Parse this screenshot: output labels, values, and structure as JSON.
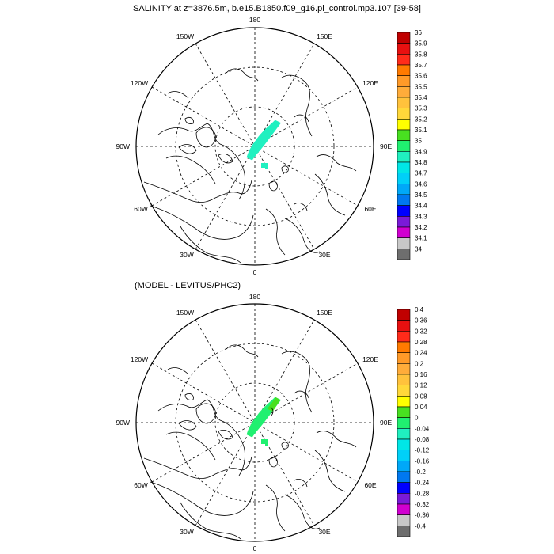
{
  "panel1": {
    "title": "SALINITY at z=3876.5m, b.e15.B1850.f09_g16.pi_control.mp3.107 [39-58]",
    "lon_labels": {
      "top": "180",
      "bottom": "0",
      "left": "90W",
      "right": "90E",
      "ul": "150W",
      "ur": "150E",
      "ull": "120W",
      "urr": "120E",
      "ll": "60W",
      "lr": "60E",
      "lll": "30W",
      "lrr": "30E"
    },
    "colorbar": {
      "labels": [
        "36",
        "35.9",
        "35.8",
        "35.7",
        "35.6",
        "35.5",
        "35.4",
        "35.3",
        "35.2",
        "35.1",
        "35",
        "34.9",
        "34.8",
        "34.7",
        "34.6",
        "34.5",
        "34.4",
        "34.3",
        "34.2",
        "34.1",
        "34"
      ],
      "colors": [
        "#c00000",
        "#e81010",
        "#ff2b1a",
        "#ff7a00",
        "#ff9a28",
        "#ffac3a",
        "#ffc23c",
        "#ffd83a",
        "#ffff00",
        "#48e020",
        "#20f070",
        "#20f0c0",
        "#00e6e6",
        "#00d0f8",
        "#00a8f8",
        "#0078f0",
        "#0000ff",
        "#7a1ad8",
        "#d000d0",
        "#c8c8c8",
        "#6e6e6e"
      ]
    }
  },
  "panel2": {
    "title": "(MODEL - LEVITUS/PHC2)",
    "lon_labels": {
      "top": "180",
      "bottom": "0",
      "left": "90W",
      "right": "90E",
      "ul": "150W",
      "ur": "150E",
      "ull": "120W",
      "urr": "120E",
      "ll": "60W",
      "lr": "60E",
      "lll": "30W",
      "lrr": "30E"
    },
    "colorbar": {
      "labels": [
        "0.4",
        "0.36",
        "0.32",
        "0.28",
        "0.24",
        "0.2",
        "0.16",
        "0.12",
        "0.08",
        "0.04",
        "0",
        "-0.04",
        "-0.08",
        "-0.12",
        "-0.16",
        "-0.2",
        "-0.24",
        "-0.28",
        "-0.32",
        "-0.36",
        "-0.4"
      ],
      "colors": [
        "#c00000",
        "#e81010",
        "#ff2b1a",
        "#ff7a00",
        "#ff9a28",
        "#ffac3a",
        "#ffc23c",
        "#ffd83a",
        "#ffff00",
        "#48e020",
        "#20f070",
        "#20f0c0",
        "#00e6e6",
        "#00d0f8",
        "#00a8f8",
        "#0078f0",
        "#0000ff",
        "#7a1ad8",
        "#d000d0",
        "#c8c8c8",
        "#6e6e6e"
      ]
    }
  }
}
